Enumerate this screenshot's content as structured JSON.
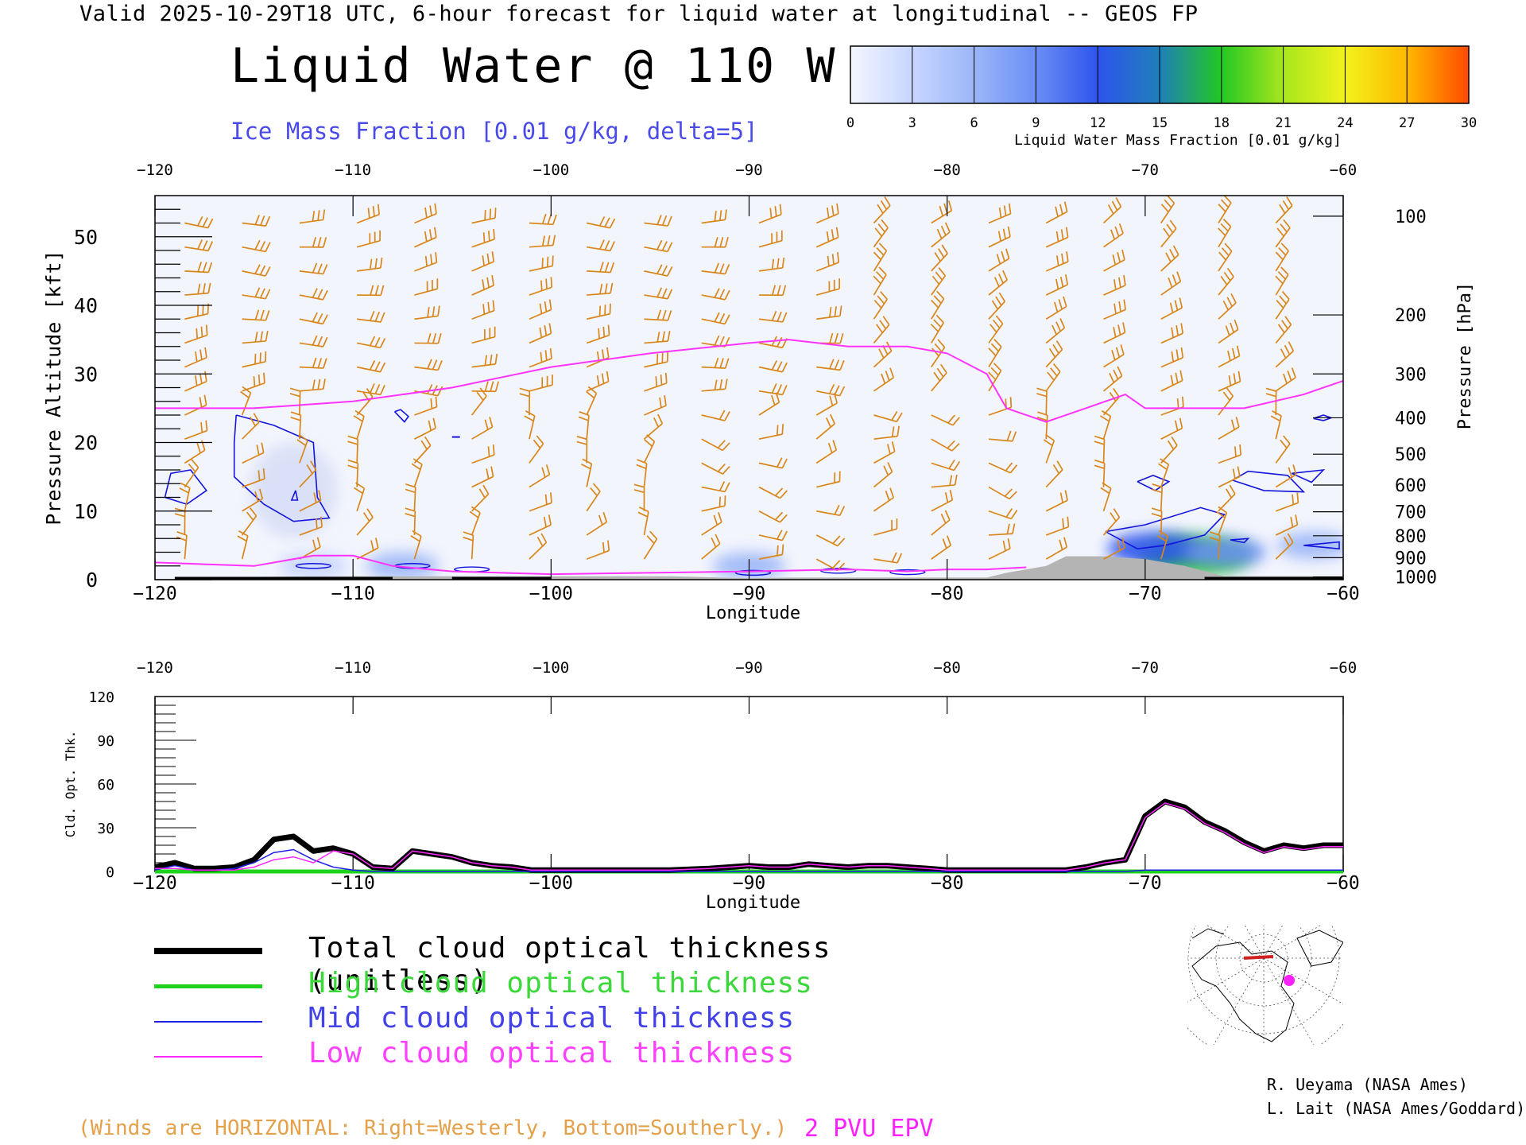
{
  "header": {
    "valid_line": "Valid 2025-10-29T18 UTC, 6-hour forecast for liquid water at longitudinal -- GEOS FP",
    "title": "Liquid Water @ 110 W",
    "subtitle": "Ice Mass Fraction [0.01 g/kg, delta=5]"
  },
  "colorbar": {
    "caption": "Liquid Water Mass Fraction [0.01 g/kg]",
    "ticks": [
      "0",
      "3",
      "6",
      "9",
      "12",
      "15",
      "18",
      "21",
      "24",
      "27",
      "30"
    ],
    "colors": [
      "#f4f6ff",
      "#c8d6ff",
      "#9bb6f8",
      "#6a8ef4",
      "#2e54ee",
      "#1f7fb8",
      "#23c823",
      "#a8e61e",
      "#f2f21c",
      "#ffb800",
      "#ff4a00"
    ]
  },
  "x_ticks": [
    "-120",
    "-110",
    "-100",
    "-90",
    "-80",
    "-70",
    "-60"
  ],
  "x_label": "Longitude",
  "colors": {
    "epv": "#ff33ff",
    "ice": "#1414dc",
    "wind": "#d9861a",
    "terrain": "#b4b4b4",
    "total": "#000000",
    "high": "#1ed21e",
    "mid": "#1e1ee6",
    "low": "#ff28ff"
  },
  "chart_data": [
    {
      "type": "heatmap",
      "title": "Liquid Water @ 110 W",
      "xlabel": "Longitude",
      "ylabel_left": "Pressure Altitude [kft]",
      "ylabel_right": "Pressure [hPa]",
      "xlim": [
        -120,
        -60
      ],
      "ylim": [
        0,
        56
      ],
      "y_ticks": [
        "0",
        "10",
        "20",
        "30",
        "40",
        "50"
      ],
      "pressure_ticks": [
        {
          "label": "100",
          "kft": 53.0
        },
        {
          "label": "200",
          "kft": 38.6
        },
        {
          "label": "300",
          "kft": 30.0
        },
        {
          "label": "400",
          "kft": 23.6
        },
        {
          "label": "500",
          "kft": 18.3
        },
        {
          "label": "600",
          "kft": 13.8
        },
        {
          "label": "700",
          "kft": 9.9
        },
        {
          "label": "800",
          "kft": 6.4
        },
        {
          "label": "900",
          "kft": 3.2
        },
        {
          "label": "1000",
          "kft": 0.4
        }
      ],
      "epv_2pvu": {
        "lon": [
          -120,
          -115,
          -110,
          -105,
          -100,
          -95,
          -90,
          -88,
          -85,
          -82,
          -80,
          -78,
          -77,
          -75,
          -73,
          -71,
          -70,
          -65,
          -62,
          -60
        ],
        "kft": [
          25,
          25,
          26,
          28,
          31,
          33,
          34.5,
          35,
          34,
          34,
          33,
          30,
          25,
          23,
          25,
          27,
          25,
          25,
          27,
          29
        ]
      },
      "epv_low": {
        "lon": [
          -120,
          -115,
          -112,
          -110,
          -108,
          -105,
          -100,
          -95,
          -90,
          -85,
          -82,
          -80,
          -78,
          -76
        ],
        "kft": [
          2.5,
          2,
          3.5,
          3.5,
          2,
          1.2,
          0.8,
          1,
          1.2,
          1.5,
          1.2,
          1.5,
          1.5,
          1.8
        ]
      },
      "terrain": {
        "lon": [
          -118,
          -112,
          -94,
          -90,
          -88,
          -85,
          -80,
          -78,
          -77,
          -75,
          -74,
          -72,
          -70,
          -68,
          -66,
          -60
        ],
        "kft": [
          0.3,
          0.5,
          0.5,
          0.2,
          0.3,
          0.3,
          0.3,
          0.3,
          1,
          2,
          3.4,
          3.4,
          3,
          2,
          0.5,
          0.5
        ]
      },
      "liquid_water_blobs": [
        {
          "lon": -67.5,
          "kft": 3.5,
          "value": 17
        },
        {
          "lon": -69.5,
          "kft": 4.5,
          "value": 12
        },
        {
          "lon": -66,
          "kft": 4,
          "value": 8
        },
        {
          "lon": -61.5,
          "kft": 5,
          "value": 5
        },
        {
          "lon": -90,
          "kft": 2,
          "value": 5
        },
        {
          "lon": -107.5,
          "kft": 2,
          "value": 5
        },
        {
          "lon": -112,
          "kft": 2,
          "value": 4
        }
      ],
      "ice_fraction_cells": [
        {
          "lon": -113,
          "kft": 14,
          "value": 4
        },
        {
          "lon": -119,
          "kft": 13,
          "value": 2
        },
        {
          "lon": -67,
          "kft": 6,
          "value": 3
        },
        {
          "lon": -64,
          "kft": 14,
          "value": 2
        }
      ],
      "wind_note": "(Winds are HORIZONTAL: Right=Westerly, Bottom=Southerly.)",
      "epv_label": "2 PVU EPV"
    },
    {
      "type": "line",
      "xlabel": "Longitude",
      "ylabel": "Cld. Opt. Thk.",
      "xlim": [
        -120,
        -60
      ],
      "ylim": [
        0,
        120
      ],
      "y_ticks": [
        "0",
        "30",
        "60",
        "90",
        "120"
      ],
      "x": [
        -120,
        -119,
        -118,
        -117,
        -116,
        -115,
        -114,
        -113,
        -112,
        -111,
        -110,
        -109,
        -108,
        -107,
        -106,
        -105,
        -104,
        -103,
        -102,
        -101,
        -100,
        -98,
        -96,
        -94,
        -92,
        -90,
        -89,
        -88,
        -87,
        -86,
        -85,
        -84,
        -83,
        -82,
        -81,
        -80,
        -78,
        -76,
        -74,
        -73,
        -72,
        -71,
        -70,
        -69,
        -68,
        -67,
        -66,
        -65,
        -64,
        -63,
        -62,
        -61,
        -60
      ],
      "series": [
        {
          "name": "Total cloud optical thickness (unitless)",
          "values": [
            3,
            6,
            2,
            2,
            3,
            8,
            22,
            24,
            14,
            16,
            12,
            3,
            2,
            14,
            12,
            10,
            6,
            4,
            3,
            1,
            1,
            1,
            1,
            1,
            2,
            4,
            3,
            3,
            5,
            4,
            3,
            4,
            4,
            3,
            2,
            1,
            1,
            1,
            1,
            3,
            6,
            8,
            38,
            48,
            44,
            34,
            28,
            20,
            14,
            18,
            16,
            18,
            18
          ]
        },
        {
          "name": "High cloud optical thickness",
          "values": [
            0,
            0,
            0,
            0,
            0,
            0,
            0,
            0,
            0,
            0,
            0,
            0,
            0,
            0,
            0,
            0,
            0,
            0,
            0,
            0,
            0,
            0,
            0,
            0,
            0,
            0,
            0,
            0,
            0,
            0,
            0,
            0,
            0,
            0,
            0,
            0,
            0,
            0,
            0,
            0,
            0,
            0,
            0,
            0,
            0,
            0,
            0,
            0,
            0,
            0,
            0,
            0,
            0
          ]
        },
        {
          "name": "Mid cloud optical thickness",
          "values": [
            1,
            4,
            1,
            1,
            2,
            6,
            13,
            15,
            8,
            3,
            1,
            0,
            0,
            0,
            0,
            0,
            0,
            0,
            0,
            0,
            0,
            0,
            0,
            0,
            0,
            0,
            0,
            0,
            0,
            0,
            0,
            0,
            0,
            0,
            0,
            0,
            0,
            0,
            0,
            0,
            0,
            0,
            1,
            1,
            1,
            1,
            1,
            1,
            1,
            1,
            1,
            1,
            1
          ]
        },
        {
          "name": "Low cloud optical thickness",
          "values": [
            2,
            2,
            1,
            1,
            1,
            3,
            8,
            10,
            6,
            14,
            12,
            3,
            2,
            14,
            12,
            10,
            6,
            4,
            3,
            1,
            1,
            1,
            1,
            1,
            2,
            4,
            3,
            3,
            5,
            4,
            3,
            4,
            4,
            3,
            2,
            1,
            1,
            1,
            1,
            3,
            6,
            8,
            37,
            47,
            43,
            33,
            27,
            19,
            13,
            17,
            15,
            17,
            17
          ]
        }
      ]
    }
  ],
  "legend": {
    "total": "Total cloud optical thickness (unitless)",
    "high": "High cloud optical thickness",
    "mid": "Mid cloud optical thickness",
    "low": "Low cloud optical thickness"
  },
  "footer": {
    "winds_note": "(Winds are HORIZONTAL: Right=Westerly, Bottom=Southerly.)",
    "pvu_label": "2 PVU EPV",
    "credit_1": "R. Ueyama (NASA Ames)",
    "credit_2": "L. Lait (NASA Ames/Goddard)"
  }
}
